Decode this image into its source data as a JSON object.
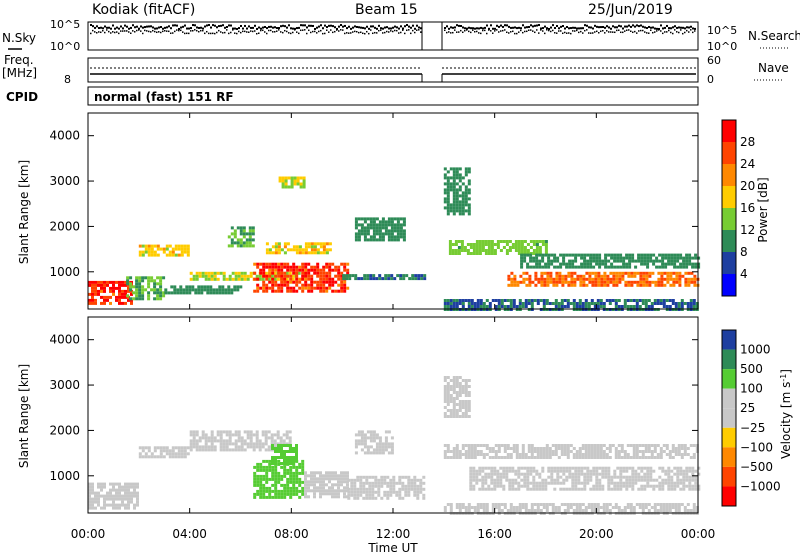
{
  "header": {
    "station": "Kodiak (fitACF)",
    "beam": "Beam 15",
    "date": "25/Jun/2019"
  },
  "top_panels": {
    "nsky_label": "N.Sky",
    "nsky_ticks": [
      "10^5",
      "10^0"
    ],
    "nsearch_label": "N.Search",
    "nsearch_ticks": [
      "10^5",
      "10^0"
    ],
    "freq_label_1": "Freq.",
    "freq_label_2": "[MHz]",
    "freq_ticks": [
      "",
      "8"
    ],
    "nave_label": "Nave",
    "nave_ticks": [
      "60",
      "0"
    ],
    "cpid_label": "CPID",
    "cpid_value": "normal (fast) 151 RF"
  },
  "x_axis": {
    "label": "Time UT",
    "ticks": [
      "00:00",
      "04:00",
      "08:00",
      "12:00",
      "16:00",
      "20:00",
      "00:00"
    ]
  },
  "power_colorbar": {
    "label": "Power [dB]",
    "ticks": [
      "28",
      "24",
      "20",
      "16",
      "12",
      "8",
      "4"
    ],
    "colors": [
      "#ff0000",
      "#ff4400",
      "#ff8800",
      "#ffcc00",
      "#77cc33",
      "#2e8b57",
      "#1e3fa0",
      "#0000ff"
    ]
  },
  "velocity_colorbar": {
    "label": "Velocity [m s",
    "label_sup": "-1",
    "label_end": "]",
    "ticks": [
      "1000",
      "500",
      "100",
      "25",
      "−25",
      "−100",
      "−500",
      "−1000"
    ],
    "colors": [
      "#1e3fa0",
      "#2e8b57",
      "#55cc33",
      "#c8c8c8",
      "#c8c8c8",
      "#ffcc00",
      "#ff8800",
      "#ff4400",
      "#ff0000"
    ]
  },
  "chart_data": [
    {
      "type": "heatmap",
      "title": "Power",
      "xlabel": "Time UT",
      "ylabel": "Slant Range [km]",
      "x_range": [
        "00:00",
        "24:00"
      ],
      "ylim": [
        180,
        4500
      ],
      "yticks": [
        1000,
        2000,
        3000,
        4000
      ],
      "data_gap": [
        "13:15",
        "14:00"
      ],
      "colorbar": {
        "label": "Power [dB]",
        "range": [
          0,
          30
        ],
        "ticks": [
          4,
          8,
          12,
          16,
          20,
          24,
          28
        ]
      },
      "regions": [
        {
          "t0": 0.0,
          "t1": 1.7,
          "r0": 300,
          "r1": 800,
          "value": 28
        },
        {
          "t0": 1.5,
          "t1": 3.0,
          "r0": 400,
          "r1": 900,
          "value": 12
        },
        {
          "t0": 2.0,
          "t1": 4.0,
          "r0": 1400,
          "r1": 1600,
          "value": 18
        },
        {
          "t0": 3.0,
          "t1": 6.0,
          "r0": 550,
          "r1": 700,
          "value": 10
        },
        {
          "t0": 4.0,
          "t1": 8.5,
          "r0": 850,
          "r1": 1000,
          "value": 16
        },
        {
          "t0": 6.5,
          "t1": 10.2,
          "r0": 600,
          "r1": 1200,
          "value": 27
        },
        {
          "t0": 7.0,
          "t1": 9.5,
          "r0": 1400,
          "r1": 1650,
          "value": 18
        },
        {
          "t0": 5.5,
          "t1": 6.5,
          "r0": 1600,
          "r1": 2000,
          "value": 12
        },
        {
          "t0": 7.5,
          "t1": 8.5,
          "r0": 2900,
          "r1": 3100,
          "value": 16
        },
        {
          "t0": 10.0,
          "t1": 13.2,
          "r0": 850,
          "r1": 950,
          "value": 8
        },
        {
          "t0": 10.5,
          "t1": 12.5,
          "r0": 1700,
          "r1": 2200,
          "value": 10
        },
        {
          "t0": 14.0,
          "t1": 15.0,
          "r0": 2300,
          "r1": 3300,
          "value": 10
        },
        {
          "t0": 14.2,
          "t1": 18.0,
          "r0": 1400,
          "r1": 1700,
          "value": 14
        },
        {
          "t0": 16.5,
          "t1": 24.0,
          "r0": 700,
          "r1": 1000,
          "value": 24
        },
        {
          "t0": 17.0,
          "t1": 24.0,
          "r0": 1100,
          "r1": 1400,
          "value": 10
        },
        {
          "t0": 14.0,
          "t1": 24.0,
          "r0": 200,
          "r1": 400,
          "value": 8
        }
      ]
    },
    {
      "type": "heatmap",
      "title": "Velocity",
      "xlabel": "Time UT",
      "ylabel": "Slant Range [km]",
      "x_range": [
        "00:00",
        "24:00"
      ],
      "ylim": [
        180,
        4500
      ],
      "yticks": [
        1000,
        2000,
        3000,
        4000
      ],
      "data_gap": [
        "13:15",
        "14:00"
      ],
      "colorbar": {
        "label": "Velocity [m s-1]",
        "ticks": [
          1000,
          500,
          100,
          25,
          -25,
          -100,
          -500,
          -1000
        ]
      },
      "regions": [
        {
          "t0": 0.0,
          "t1": 2.0,
          "r0": 300,
          "r1": 850,
          "value": 0
        },
        {
          "t0": 2.0,
          "t1": 4.0,
          "r0": 1400,
          "r1": 1650,
          "value": 0
        },
        {
          "t0": 4.0,
          "t1": 8.0,
          "r0": 1600,
          "r1": 2000,
          "value": 0
        },
        {
          "t0": 6.5,
          "t1": 8.5,
          "r0": 500,
          "r1": 1350,
          "value": 150
        },
        {
          "t0": 8.5,
          "t1": 10.2,
          "r0": 550,
          "r1": 1100,
          "value": 40
        },
        {
          "t0": 7.2,
          "t1": 8.2,
          "r0": 1300,
          "r1": 1700,
          "value": 400
        },
        {
          "t0": 10.2,
          "t1": 13.2,
          "r0": 500,
          "r1": 1000,
          "value": 0
        },
        {
          "t0": 10.5,
          "t1": 12.0,
          "r0": 1500,
          "r1": 2000,
          "value": 0
        },
        {
          "t0": 14.0,
          "t1": 15.0,
          "r0": 2300,
          "r1": 3200,
          "value": 0
        },
        {
          "t0": 14.0,
          "t1": 24.0,
          "r0": 1400,
          "r1": 1700,
          "value": 0
        },
        {
          "t0": 15.0,
          "t1": 24.0,
          "r0": 700,
          "r1": 1200,
          "value": 0
        },
        {
          "t0": 14.0,
          "t1": 24.0,
          "r0": 200,
          "r1": 400,
          "value": 0
        }
      ]
    }
  ]
}
